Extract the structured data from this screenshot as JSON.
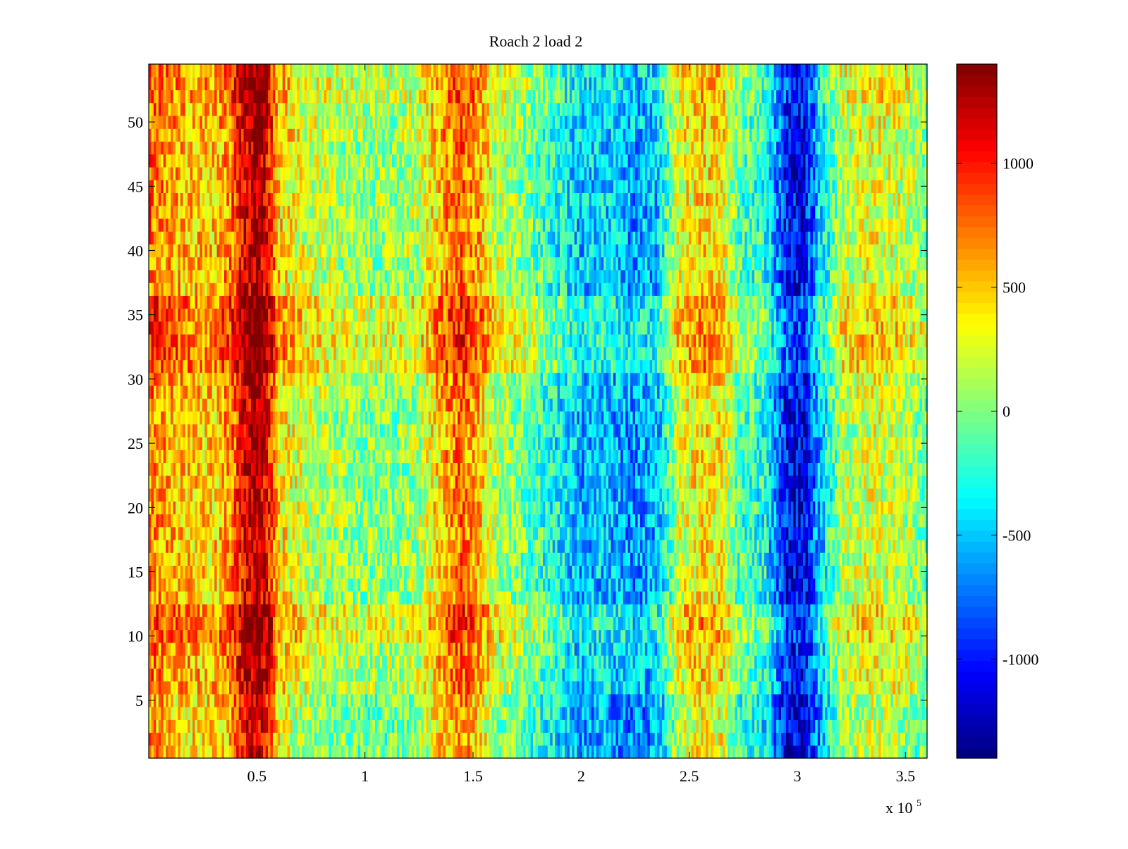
{
  "chart_data": {
    "type": "heatmap",
    "title": "Roach 2 load 2",
    "xlabel": "",
    "ylabel": "",
    "x_multiplier_label": {
      "base": "x 10",
      "exponent": "5"
    },
    "xlim": [
      0,
      3.6
    ],
    "ylim": [
      0.5,
      54.5
    ],
    "x_ticks": [
      {
        "value": 0.5,
        "label": "0.5"
      },
      {
        "value": 1.0,
        "label": "1"
      },
      {
        "value": 1.5,
        "label": "1.5"
      },
      {
        "value": 2.0,
        "label": "2"
      },
      {
        "value": 2.5,
        "label": "2.5"
      },
      {
        "value": 3.0,
        "label": "3"
      },
      {
        "value": 3.5,
        "label": "3.5"
      }
    ],
    "y_ticks": [
      {
        "value": 5,
        "label": "5"
      },
      {
        "value": 10,
        "label": "10"
      },
      {
        "value": 15,
        "label": "15"
      },
      {
        "value": 20,
        "label": "20"
      },
      {
        "value": 25,
        "label": "25"
      },
      {
        "value": 30,
        "label": "30"
      },
      {
        "value": 35,
        "label": "35"
      },
      {
        "value": 40,
        "label": "40"
      },
      {
        "value": 45,
        "label": "45"
      },
      {
        "value": 50,
        "label": "50"
      }
    ],
    "rows": 54,
    "colormap": "jet",
    "clim": [
      -1400,
      1400
    ],
    "colorbar": {
      "placement": "right",
      "ticks": [
        {
          "value": 1000,
          "label": "1000"
        },
        {
          "value": 500,
          "label": "500"
        },
        {
          "value": 0,
          "label": "0"
        },
        {
          "value": -500,
          "label": "-500"
        },
        {
          "value": -1000,
          "label": "-1000"
        }
      ]
    },
    "column_profile": [
      {
        "x": 0.0,
        "value": 700
      },
      {
        "x": 0.1,
        "value": 550
      },
      {
        "x": 0.2,
        "value": 450
      },
      {
        "x": 0.3,
        "value": 450
      },
      {
        "x": 0.38,
        "value": 650
      },
      {
        "x": 0.45,
        "value": 1150
      },
      {
        "x": 0.5,
        "value": 1300
      },
      {
        "x": 0.55,
        "value": 1050
      },
      {
        "x": 0.6,
        "value": 400
      },
      {
        "x": 0.75,
        "value": 150
      },
      {
        "x": 0.9,
        "value": 50
      },
      {
        "x": 1.1,
        "value": 0
      },
      {
        "x": 1.25,
        "value": 100
      },
      {
        "x": 1.38,
        "value": 600
      },
      {
        "x": 1.45,
        "value": 750
      },
      {
        "x": 1.52,
        "value": 550
      },
      {
        "x": 1.6,
        "value": 150
      },
      {
        "x": 1.75,
        "value": -50
      },
      {
        "x": 1.85,
        "value": -250
      },
      {
        "x": 2.0,
        "value": -550
      },
      {
        "x": 2.1,
        "value": -500
      },
      {
        "x": 2.25,
        "value": -650
      },
      {
        "x": 2.35,
        "value": -550
      },
      {
        "x": 2.45,
        "value": 200
      },
      {
        "x": 2.55,
        "value": 400
      },
      {
        "x": 2.65,
        "value": 350
      },
      {
        "x": 2.73,
        "value": -150
      },
      {
        "x": 2.85,
        "value": -300
      },
      {
        "x": 2.95,
        "value": -1050
      },
      {
        "x": 3.03,
        "value": -1150
      },
      {
        "x": 3.1,
        "value": -550
      },
      {
        "x": 3.2,
        "value": 100
      },
      {
        "x": 3.35,
        "value": 250
      },
      {
        "x": 3.5,
        "value": 150
      },
      {
        "x": 3.6,
        "value": -50
      }
    ],
    "row_modulation": [
      {
        "rows": [
          1,
          5
        ],
        "delta": -60
      },
      {
        "rows": [
          6,
          9
        ],
        "delta": 80
      },
      {
        "rows": [
          10,
          12
        ],
        "delta": 220
      },
      {
        "rows": [
          13,
          28
        ],
        "delta": 0
      },
      {
        "rows": [
          29,
          30
        ],
        "delta": 60
      },
      {
        "rows": [
          31,
          36
        ],
        "delta": 260
      },
      {
        "rows": [
          37,
          48
        ],
        "delta": 40
      },
      {
        "rows": [
          49,
          51
        ],
        "delta": 80
      },
      {
        "rows": [
          52,
          54
        ],
        "delta": 160
      }
    ],
    "noise_amplitude": 380
  }
}
